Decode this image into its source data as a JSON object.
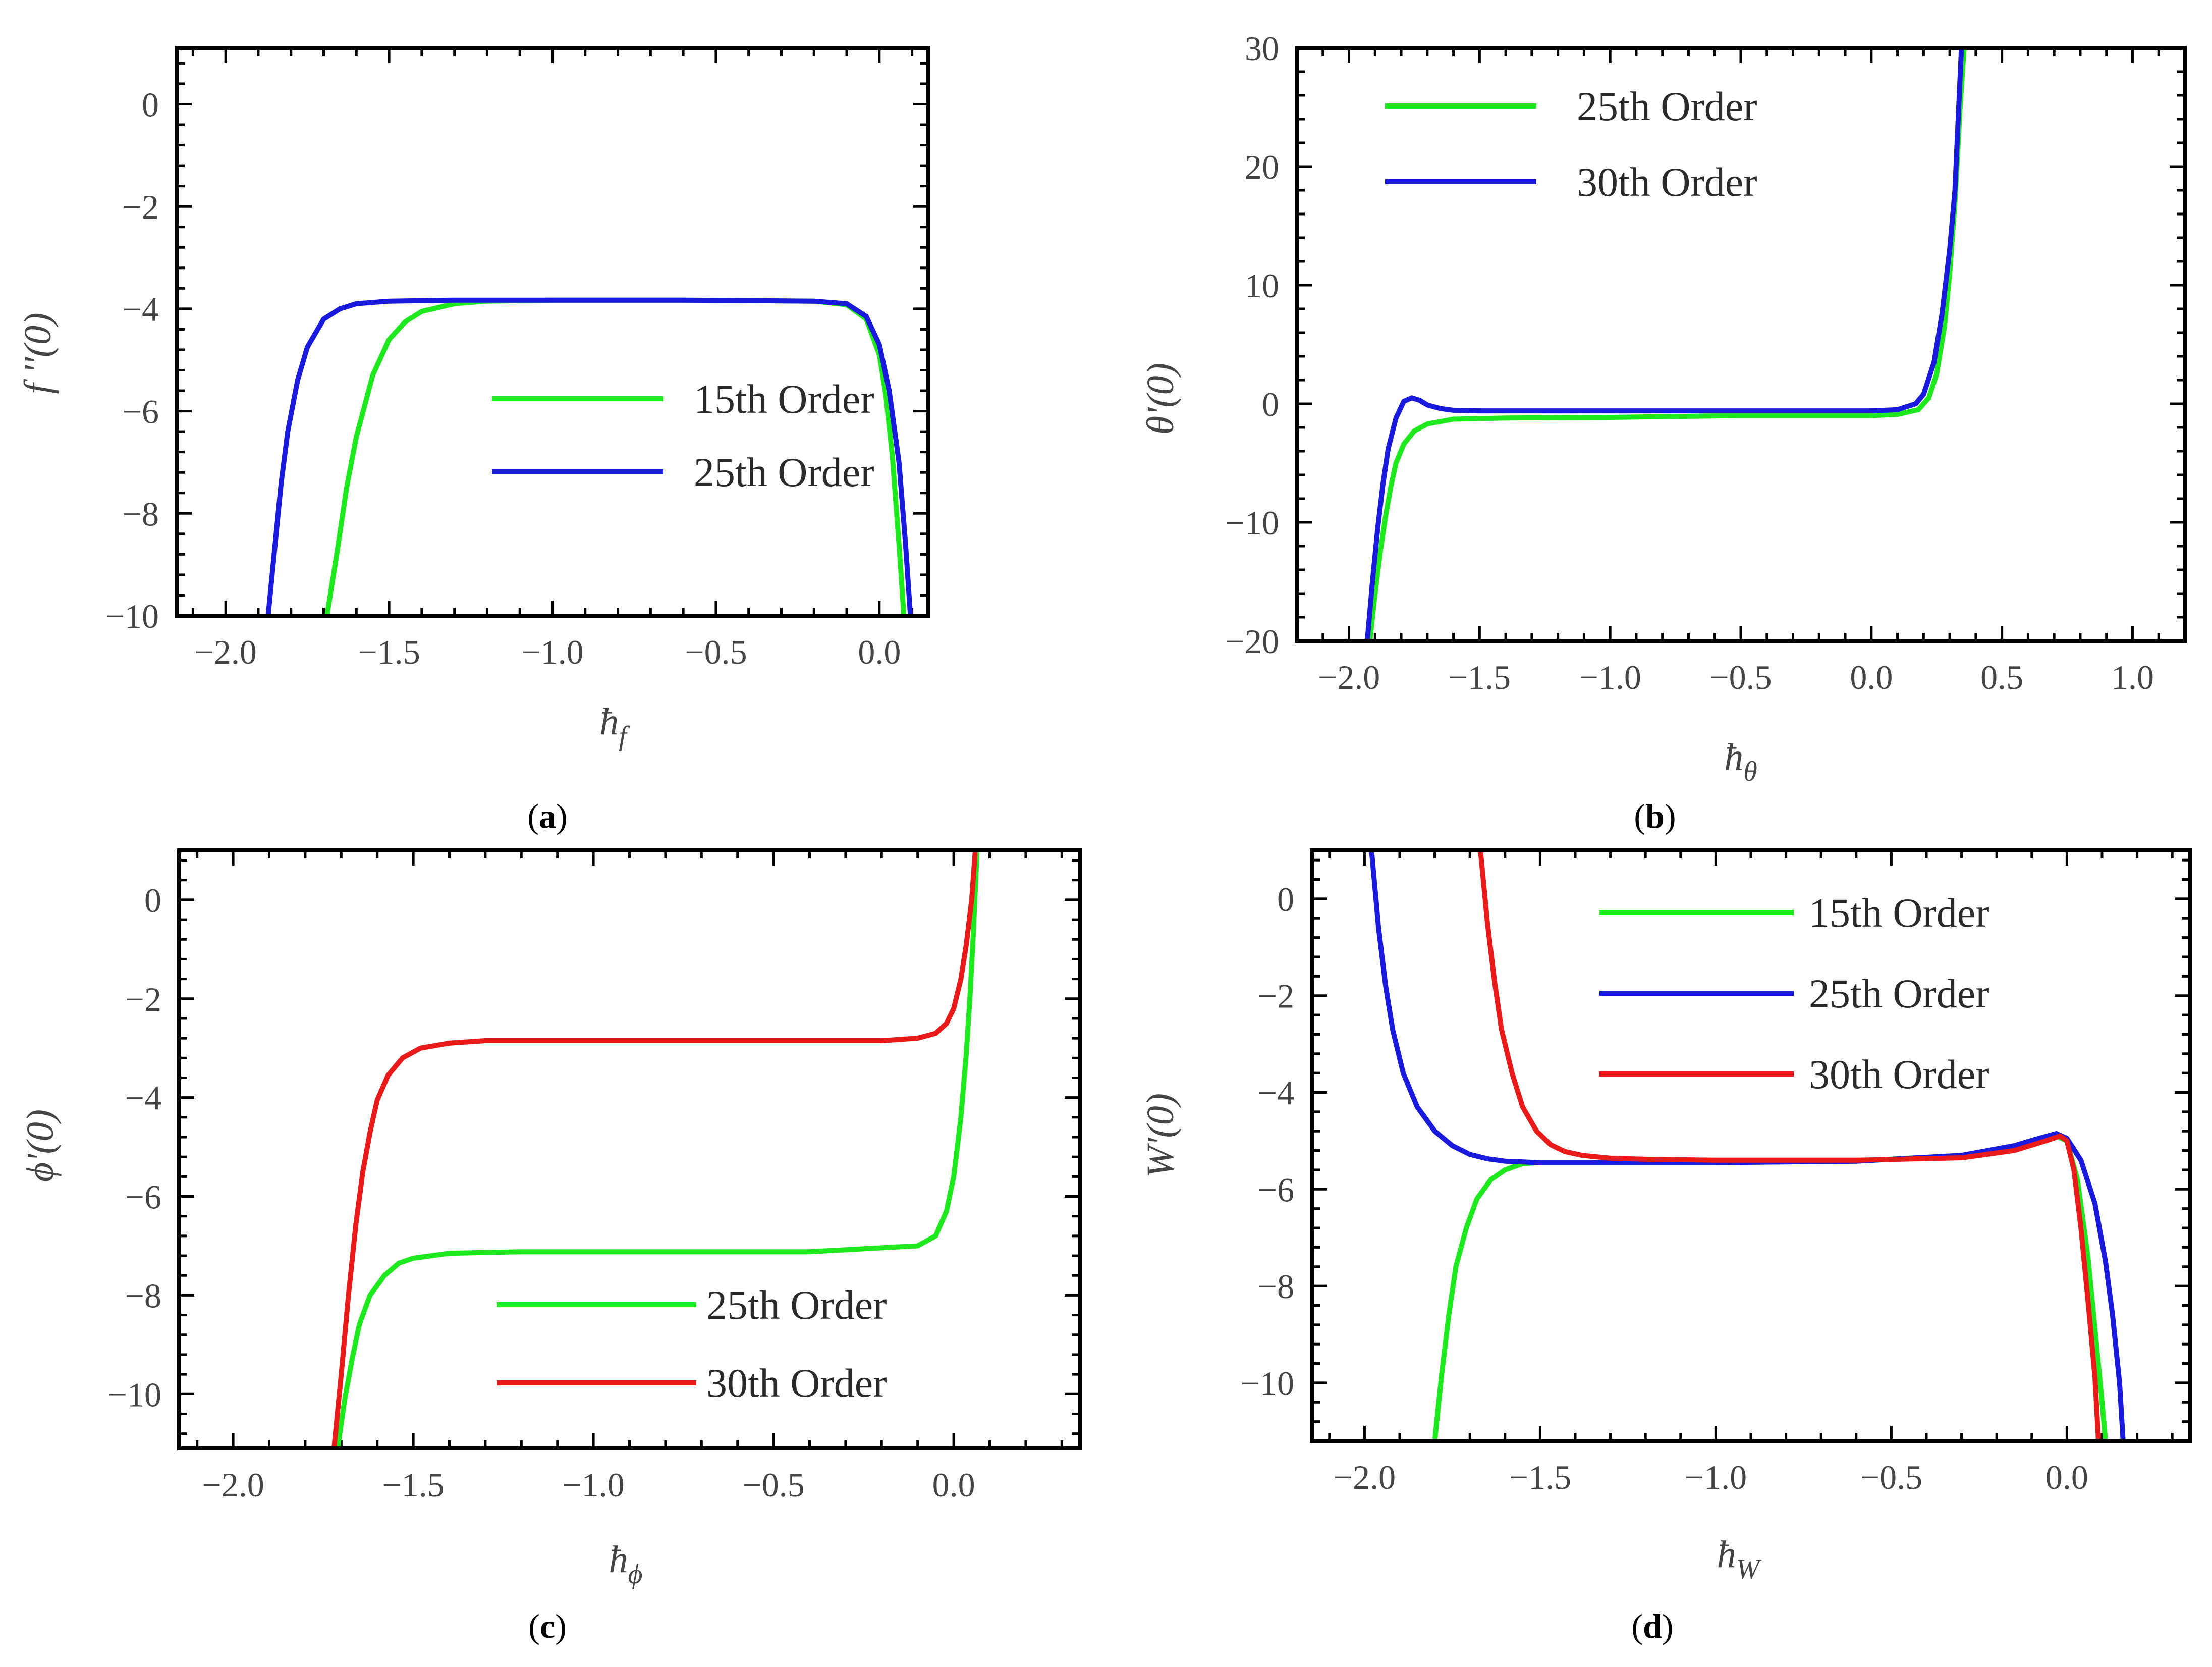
{
  "colors": {
    "green": "#1ee81e",
    "blue": "#1a1adc",
    "red": "#e81a1a",
    "frame": "#000000"
  },
  "chart_data": [
    {
      "id": "a",
      "type": "line",
      "caption": "a",
      "xlabel": "ħf",
      "ylabel": "f ''(0)",
      "xlim": [
        -2.15,
        0.15
      ],
      "ylim": [
        -10,
        1.1
      ],
      "xticks": [
        -2.0,
        -1.5,
        -1.0,
        -0.5,
        0.0
      ],
      "xtick_labels": [
        "−2.0",
        "−1.5",
        "−1.0",
        "−0.5",
        "0.0"
      ],
      "yticks": [
        0,
        -2,
        -4,
        -6,
        -8,
        -10
      ],
      "ytick_labels": [
        "0",
        "−2",
        "−4",
        "−6",
        "−8",
        "−10"
      ],
      "legend_position": "center-right",
      "series": [
        {
          "name": "15th Order",
          "color": "#1ee81e",
          "x": [
            -1.69,
            -1.66,
            -1.63,
            -1.6,
            -1.55,
            -1.5,
            -1.45,
            -1.4,
            -1.3,
            -1.2,
            -1.0,
            -0.6,
            -0.2,
            -0.1,
            -0.04,
            0.0,
            0.02,
            0.04,
            0.06,
            0.075
          ],
          "y": [
            -10.0,
            -8.8,
            -7.5,
            -6.5,
            -5.3,
            -4.6,
            -4.25,
            -4.05,
            -3.9,
            -3.85,
            -3.83,
            -3.83,
            -3.85,
            -3.92,
            -4.2,
            -4.9,
            -5.7,
            -6.9,
            -8.6,
            -10.0
          ]
        },
        {
          "name": "25th Order",
          "color": "#1a1adc",
          "x": [
            -1.87,
            -1.85,
            -1.83,
            -1.81,
            -1.78,
            -1.75,
            -1.7,
            -1.65,
            -1.6,
            -1.5,
            -1.3,
            -1.0,
            -0.6,
            -0.2,
            -0.1,
            -0.04,
            0.0,
            0.03,
            0.06,
            0.08,
            0.095
          ],
          "y": [
            -10.0,
            -8.7,
            -7.4,
            -6.4,
            -5.4,
            -4.75,
            -4.2,
            -4.0,
            -3.9,
            -3.85,
            -3.83,
            -3.83,
            -3.83,
            -3.85,
            -3.9,
            -4.15,
            -4.7,
            -5.6,
            -7.0,
            -8.6,
            -10.0
          ]
        }
      ]
    },
    {
      "id": "b",
      "type": "line",
      "caption": "b",
      "xlabel": "ħθ",
      "ylabel": "θ'(0)",
      "xlim": [
        -2.2,
        1.2
      ],
      "ylim": [
        -20,
        30
      ],
      "xticks": [
        -2.0,
        -1.5,
        -1.0,
        -0.5,
        0.0,
        0.5,
        1.0
      ],
      "xtick_labels": [
        "−2.0",
        "−1.5",
        "−1.0",
        "−0.5",
        "0.0",
        "0.5",
        "1.0"
      ],
      "yticks": [
        30,
        20,
        10,
        0,
        -10,
        -20
      ],
      "ytick_labels": [
        "30",
        "20",
        "10",
        "0",
        "−10",
        "−20"
      ],
      "legend_position": "top-left",
      "series": [
        {
          "name": "25th Order",
          "color": "#1ee81e",
          "x": [
            -1.92,
            -1.9,
            -1.88,
            -1.86,
            -1.84,
            -1.82,
            -1.79,
            -1.75,
            -1.7,
            -1.6,
            -1.4,
            -1.0,
            -0.5,
            0.0,
            0.1,
            0.18,
            0.22,
            0.25,
            0.28,
            0.3,
            0.32,
            0.34,
            0.355
          ],
          "y": [
            -20,
            -16,
            -12.5,
            -9.5,
            -7.0,
            -5.0,
            -3.4,
            -2.3,
            -1.7,
            -1.3,
            -1.2,
            -1.15,
            -1.0,
            -1.0,
            -0.9,
            -0.5,
            0.5,
            2.5,
            6.5,
            11.0,
            17.0,
            25.0,
            30.0
          ]
        },
        {
          "name": "30th Order",
          "color": "#1a1adc",
          "x": [
            -1.93,
            -1.91,
            -1.89,
            -1.87,
            -1.85,
            -1.82,
            -1.79,
            -1.76,
            -1.73,
            -1.7,
            -1.65,
            -1.6,
            -1.5,
            -1.3,
            -1.0,
            -0.5,
            0.0,
            0.1,
            0.17,
            0.2,
            0.24,
            0.27,
            0.3,
            0.32,
            0.345
          ],
          "y": [
            -20,
            -15,
            -10.5,
            -6.8,
            -3.8,
            -1.2,
            0.2,
            0.5,
            0.3,
            -0.1,
            -0.4,
            -0.55,
            -0.6,
            -0.6,
            -0.6,
            -0.6,
            -0.6,
            -0.5,
            0.0,
            0.8,
            3.5,
            7.5,
            13.0,
            18.0,
            30.0
          ]
        }
      ]
    },
    {
      "id": "c",
      "type": "line",
      "caption": "c",
      "xlabel": "ħϕ",
      "ylabel": "ϕ'(0)",
      "xlim": [
        -2.15,
        0.35
      ],
      "ylim": [
        -11.1,
        1.0
      ],
      "xticks": [
        -2.0,
        -1.5,
        -1.0,
        -0.5,
        0.0
      ],
      "xtick_labels": [
        "−2.0",
        "−1.5",
        "−1.0",
        "−0.5",
        "0.0"
      ],
      "yticks": [
        0,
        -2,
        -4,
        -6,
        -8,
        -10
      ],
      "ytick_labels": [
        "0",
        "−2",
        "−4",
        "−6",
        "−8",
        "−10"
      ],
      "legend_position": "bottom-center",
      "series": [
        {
          "name": "25th Order",
          "color": "#1ee81e",
          "x": [
            -1.71,
            -1.69,
            -1.67,
            -1.65,
            -1.62,
            -1.58,
            -1.54,
            -1.5,
            -1.4,
            -1.2,
            -0.8,
            -0.4,
            -0.1,
            -0.05,
            -0.02,
            0.0,
            0.02,
            0.035,
            0.045,
            0.055,
            0.065
          ],
          "y": [
            -11.1,
            -10.1,
            -9.3,
            -8.6,
            -8.0,
            -7.6,
            -7.35,
            -7.25,
            -7.15,
            -7.12,
            -7.12,
            -7.12,
            -7.0,
            -6.8,
            -6.3,
            -5.6,
            -4.4,
            -3.1,
            -2.0,
            -0.6,
            1.0
          ]
        },
        {
          "name": "30th Order",
          "color": "#e81a1a",
          "x": [
            -1.72,
            -1.7,
            -1.68,
            -1.66,
            -1.64,
            -1.62,
            -1.6,
            -1.57,
            -1.53,
            -1.48,
            -1.4,
            -1.3,
            -1.0,
            -0.6,
            -0.2,
            -0.1,
            -0.05,
            -0.02,
            0.0,
            0.02,
            0.035,
            0.05,
            0.06
          ],
          "y": [
            -11.1,
            -9.6,
            -8.0,
            -6.6,
            -5.5,
            -4.7,
            -4.05,
            -3.55,
            -3.2,
            -3.0,
            -2.9,
            -2.85,
            -2.85,
            -2.85,
            -2.85,
            -2.8,
            -2.7,
            -2.5,
            -2.2,
            -1.6,
            -0.9,
            0.0,
            1.0
          ]
        }
      ]
    },
    {
      "id": "d",
      "type": "line",
      "caption": "d",
      "xlabel": "ħW",
      "ylabel": "W'(0)",
      "xlim": [
        -2.15,
        0.35
      ],
      "ylim": [
        -11.2,
        1.0
      ],
      "xticks": [
        -2.0,
        -1.5,
        -1.0,
        -0.5,
        0.0
      ],
      "xtick_labels": [
        "−2.0",
        "−1.5",
        "−1.0",
        "−0.5",
        "0.0"
      ],
      "yticks": [
        0,
        -2,
        -4,
        -6,
        -8,
        -10
      ],
      "ytick_labels": [
        "0",
        "−2",
        "−4",
        "−6",
        "−8",
        "−10"
      ],
      "legend_position": "top-right",
      "series": [
        {
          "name": "15th Order",
          "color": "#1ee81e",
          "x": [
            -1.8,
            -1.78,
            -1.76,
            -1.74,
            -1.71,
            -1.68,
            -1.64,
            -1.6,
            -1.55,
            -1.5,
            -1.3,
            -1.0,
            -0.6,
            -0.3,
            -0.15,
            -0.08,
            -0.03,
            0.0,
            0.03,
            0.06,
            0.08,
            0.095,
            0.11
          ],
          "y": [
            -11.2,
            -9.8,
            -8.6,
            -7.6,
            -6.8,
            -6.2,
            -5.8,
            -5.6,
            -5.47,
            -5.45,
            -5.45,
            -5.45,
            -5.42,
            -5.3,
            -5.15,
            -5.0,
            -4.9,
            -5.0,
            -5.8,
            -7.4,
            -8.9,
            -10.0,
            -11.2
          ]
        },
        {
          "name": "25th Order",
          "color": "#1a1adc",
          "x": [
            -1.98,
            -1.96,
            -1.94,
            -1.92,
            -1.89,
            -1.85,
            -1.8,
            -1.75,
            -1.7,
            -1.65,
            -1.6,
            -1.5,
            -1.3,
            -1.0,
            -0.6,
            -0.3,
            -0.15,
            -0.08,
            -0.03,
            0.0,
            0.04,
            0.08,
            0.11,
            0.13,
            0.15,
            0.16
          ],
          "y": [
            1.0,
            -0.6,
            -1.8,
            -2.7,
            -3.6,
            -4.3,
            -4.8,
            -5.1,
            -5.28,
            -5.37,
            -5.42,
            -5.45,
            -5.45,
            -5.45,
            -5.42,
            -5.3,
            -5.1,
            -4.95,
            -4.85,
            -4.95,
            -5.4,
            -6.3,
            -7.5,
            -8.6,
            -10.0,
            -11.2
          ]
        },
        {
          "name": "30th Order",
          "color": "#e81a1a",
          "x": [
            -1.67,
            -1.65,
            -1.63,
            -1.61,
            -1.58,
            -1.55,
            -1.51,
            -1.47,
            -1.43,
            -1.38,
            -1.3,
            -1.2,
            -1.0,
            -0.6,
            -0.3,
            -0.15,
            -0.06,
            -0.02,
            0.0,
            0.02,
            0.04,
            0.06,
            0.08,
            0.09
          ],
          "y": [
            1.0,
            -0.5,
            -1.7,
            -2.7,
            -3.6,
            -4.3,
            -4.8,
            -5.08,
            -5.22,
            -5.3,
            -5.36,
            -5.38,
            -5.4,
            -5.4,
            -5.35,
            -5.2,
            -5.0,
            -4.9,
            -5.0,
            -5.6,
            -6.8,
            -8.3,
            -9.9,
            -11.2
          ]
        }
      ]
    }
  ]
}
